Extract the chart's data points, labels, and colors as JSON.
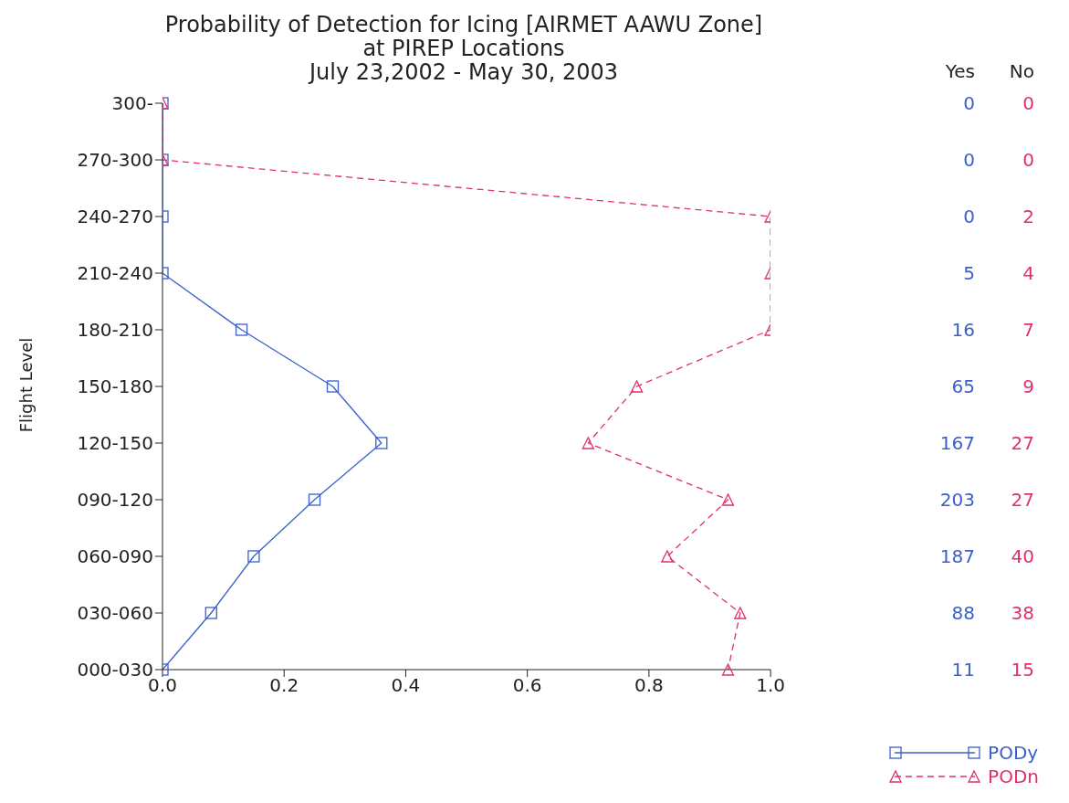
{
  "chart_data": {
    "type": "line",
    "orientation": "horizontal",
    "title": "Probability of Detection for Icing [AIRMET AAWU Zone]",
    "subtitle": "at PIREP Locations\nJuly 23,2002 - May 30, 2003",
    "ylabel": "Flight Level",
    "categories": [
      "300-",
      "270-300",
      "240-270",
      "210-240",
      "180-210",
      "150-180",
      "120-150",
      "090-120",
      "060-090",
      "030-060",
      "000-030"
    ],
    "series": [
      {
        "name": "PODy",
        "color": "#3a5fcd",
        "marker": "square",
        "line_style": "solid",
        "values": [
          0,
          0,
          0,
          0,
          0.13,
          0.28,
          0.36,
          0.25,
          0.15,
          0.08,
          0
        ]
      },
      {
        "name": "PODn",
        "color": "#e0306a",
        "marker": "triangle",
        "line_style": "dashed",
        "values": [
          0,
          0,
          1,
          1,
          1,
          0.78,
          0.7,
          0.93,
          0.83,
          0.95,
          0.93
        ]
      }
    ],
    "xlim": [
      0,
      1
    ],
    "xticks": [
      {
        "value": 0,
        "label": "0.0"
      },
      0.2,
      0.4,
      0.6,
      0.8,
      {
        "value": 1,
        "label": "1.0"
      }
    ],
    "grid": false,
    "legend": "bottom right",
    "annotations": [
      "Yes",
      "0",
      "0",
      "0",
      "5",
      "16",
      "65",
      "167",
      "203",
      "187",
      "88",
      "11",
      "No",
      "0",
      "0",
      "2",
      "4",
      "7",
      "9",
      "27",
      "27",
      "40",
      "38",
      "15"
    ]
  }
}
